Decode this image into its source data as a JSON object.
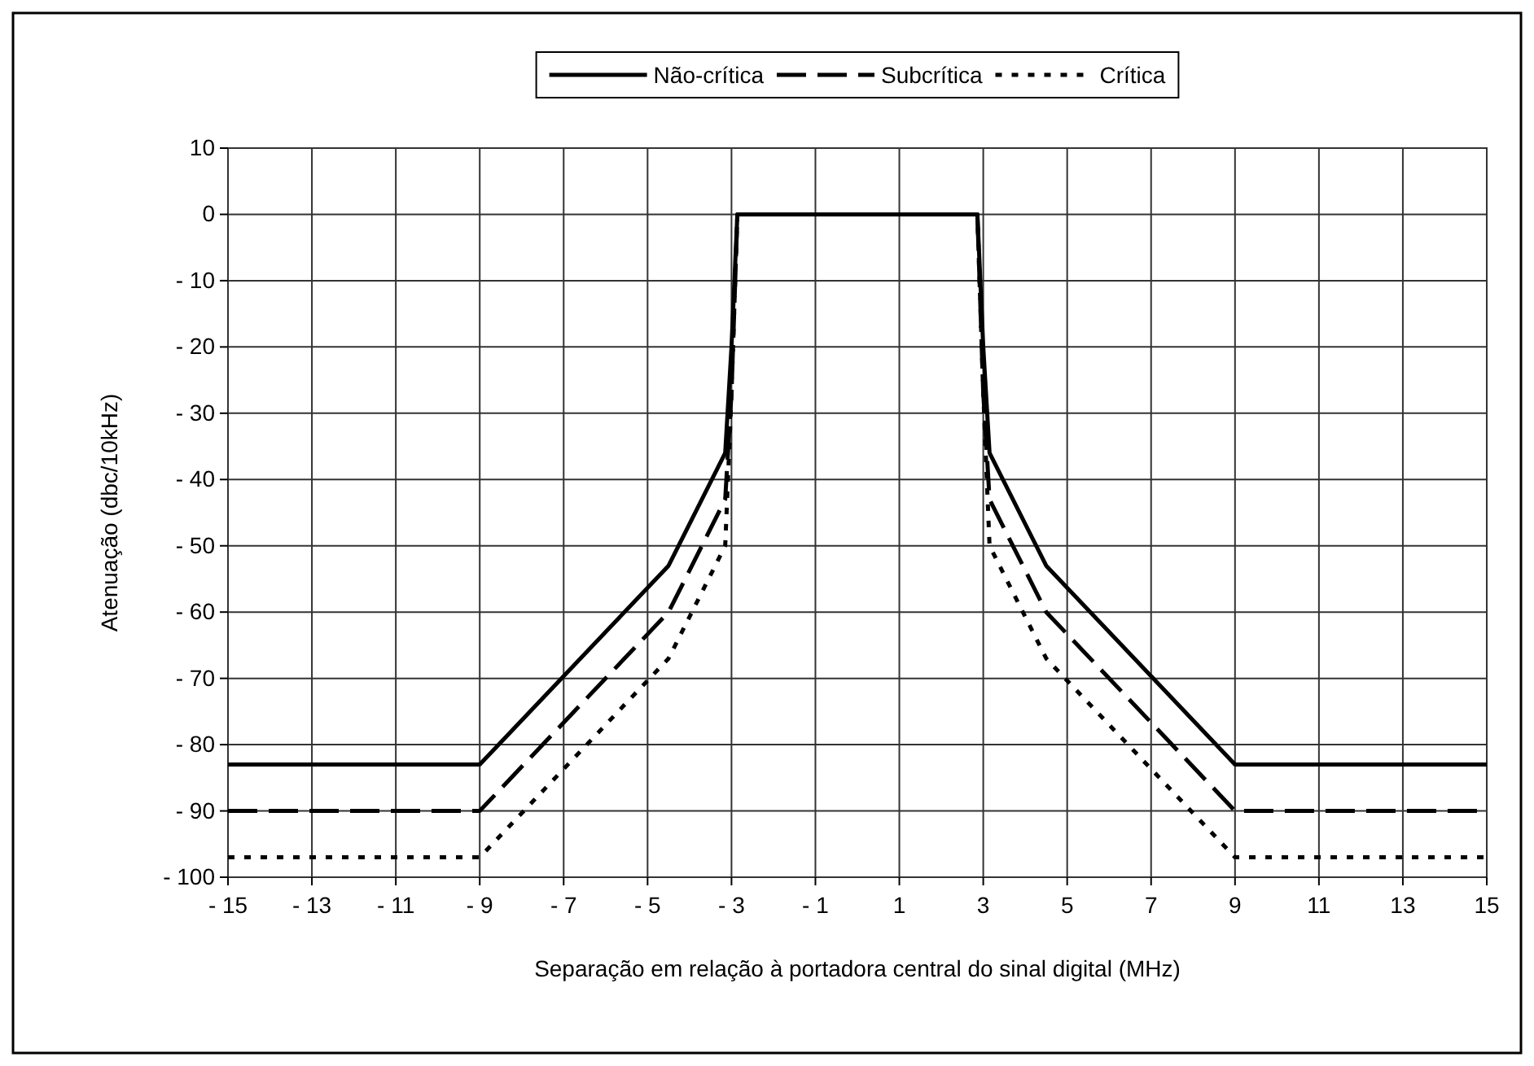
{
  "chart_data": {
    "type": "line",
    "xlabel": "Separação em relação à portadora central do sinal digital (MHz)",
    "ylabel": "Atenuação (dbc/10kHz)",
    "xlim": [
      -15,
      15
    ],
    "xticks": [
      {
        "value": -15,
        "label": "- 15"
      },
      {
        "value": -13,
        "label": "- 13"
      },
      {
        "value": -11,
        "label": "- 11"
      },
      {
        "value": -9,
        "label": "- 9"
      },
      {
        "value": -7,
        "label": "- 7"
      },
      {
        "value": -5,
        "label": "- 5"
      },
      {
        "value": -3,
        "label": "- 3"
      },
      {
        "value": -1,
        "label": "- 1"
      },
      1,
      3,
      5,
      7,
      9,
      11,
      13,
      15
    ],
    "ylim": [
      -100,
      10
    ],
    "yticks": [
      {
        "value": -100,
        "label": "- 100"
      },
      {
        "value": -90,
        "label": "- 90"
      },
      {
        "value": -80,
        "label": "- 80"
      },
      {
        "value": -70,
        "label": "- 70"
      },
      {
        "value": -60,
        "label": "- 60"
      },
      {
        "value": -50,
        "label": "- 50"
      },
      {
        "value": -40,
        "label": "- 40"
      },
      {
        "value": -30,
        "label": "- 30"
      },
      {
        "value": -20,
        "label": "- 20"
      },
      {
        "value": -10,
        "label": "- 10"
      },
      0,
      10
    ],
    "grid": true,
    "legend": "top",
    "marker": "none",
    "series": [
      {
        "name": "Não-crítica",
        "color": "#000000",
        "line_style": "solid",
        "x": [
          -15,
          -9,
          -4.5,
          -3.15,
          -3,
          -2.86,
          2.86,
          3,
          3.15,
          4.5,
          9,
          15
        ],
        "values": [
          -83,
          -83,
          -53,
          -36,
          -20,
          0,
          0,
          -20,
          -36,
          -53,
          -83,
          -83
        ]
      },
      {
        "name": "Subcrítica",
        "color": "#000000",
        "line_style": "dashed",
        "x": [
          -15,
          -9,
          -4.5,
          -3.15,
          -3,
          -2.86,
          2.86,
          3,
          3.15,
          4.5,
          9,
          15
        ],
        "values": [
          -90,
          -90,
          -60,
          -43,
          -27,
          0,
          0,
          -27,
          -43,
          -60,
          -90,
          -90
        ]
      },
      {
        "name": "Crítica",
        "color": "#000000",
        "line_style": "dotted",
        "x": [
          -15,
          -9,
          -4.5,
          -3.15,
          -3,
          -2.86,
          2.86,
          3,
          3.15,
          4.5,
          9,
          15
        ],
        "values": [
          -97,
          -97,
          -67,
          -50,
          -27,
          0,
          0,
          -27,
          -50,
          -67,
          -97,
          -97
        ]
      }
    ]
  }
}
